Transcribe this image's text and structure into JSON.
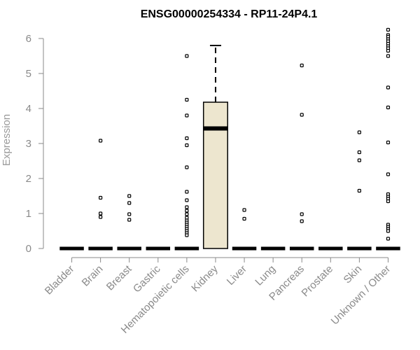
{
  "chart_data": {
    "type": "box",
    "title": "ENSG00000254334 - RP11-24P4.1",
    "xlabel": "",
    "ylabel": "Expression",
    "ylim": [
      0,
      6
    ],
    "yticks": [
      0,
      1,
      2,
      3,
      4,
      5,
      6
    ],
    "grid": false,
    "box_fill": "#ede6cf",
    "categories": [
      "Bladder",
      "Brain",
      "Breast",
      "Gastric",
      "Hematopoietic cells",
      "Kidney",
      "Liver",
      "Lung",
      "Pancreas",
      "Prostate",
      "Skin",
      "Unknown / Other"
    ],
    "boxes": [
      {
        "q1": 0,
        "median": 0,
        "q3": 0,
        "whisker_low": 0,
        "whisker_high": 0,
        "outliers": []
      },
      {
        "q1": 0,
        "median": 0,
        "q3": 0,
        "whisker_low": 0,
        "whisker_high": 0,
        "outliers": [
          3.08,
          1.45,
          1.0,
          0.9
        ]
      },
      {
        "q1": 0,
        "median": 0,
        "q3": 0,
        "whisker_low": 0,
        "whisker_high": 0,
        "outliers": [
          1.5,
          1.3,
          0.98,
          0.82
        ]
      },
      {
        "q1": 0,
        "median": 0,
        "q3": 0,
        "whisker_low": 0,
        "whisker_high": 0,
        "outliers": []
      },
      {
        "q1": 0,
        "median": 0,
        "q3": 0,
        "whisker_low": 0,
        "whisker_high": 0,
        "outliers": [
          5.5,
          4.25,
          3.8,
          3.15,
          2.95,
          2.32,
          1.62,
          1.38,
          1.18,
          1.08,
          0.98,
          0.88,
          0.8,
          0.74,
          0.68,
          0.62,
          0.56,
          0.5,
          0.44,
          0.38
        ]
      },
      {
        "q1": 0,
        "median": 3.43,
        "q3": 4.18,
        "whisker_low": 0,
        "whisker_high": 5.8,
        "outliers": []
      },
      {
        "q1": 0,
        "median": 0,
        "q3": 0,
        "whisker_low": 0,
        "whisker_high": 0,
        "outliers": [
          1.1,
          0.85
        ]
      },
      {
        "q1": 0,
        "median": 0,
        "q3": 0,
        "whisker_low": 0,
        "whisker_high": 0,
        "outliers": []
      },
      {
        "q1": 0,
        "median": 0,
        "q3": 0,
        "whisker_low": 0,
        "whisker_high": 0,
        "outliers": [
          5.23,
          3.82,
          0.98,
          0.78
        ]
      },
      {
        "q1": 0,
        "median": 0,
        "q3": 0,
        "whisker_low": 0,
        "whisker_high": 0,
        "outliers": []
      },
      {
        "q1": 0,
        "median": 0,
        "q3": 0,
        "whisker_low": 0,
        "whisker_high": 0,
        "outliers": [
          3.32,
          2.75,
          2.52,
          1.65
        ]
      },
      {
        "q1": 0,
        "median": 0,
        "q3": 0,
        "whisker_low": 0,
        "whisker_high": 0,
        "outliers": [
          6.25,
          6.1,
          6.05,
          5.98,
          5.92,
          5.85,
          5.78,
          5.72,
          5.65,
          5.5,
          4.6,
          4.03,
          3.03,
          2.12,
          1.55,
          1.48,
          1.42,
          1.35,
          0.68,
          0.62,
          0.56,
          0.5,
          0.28
        ]
      }
    ]
  }
}
